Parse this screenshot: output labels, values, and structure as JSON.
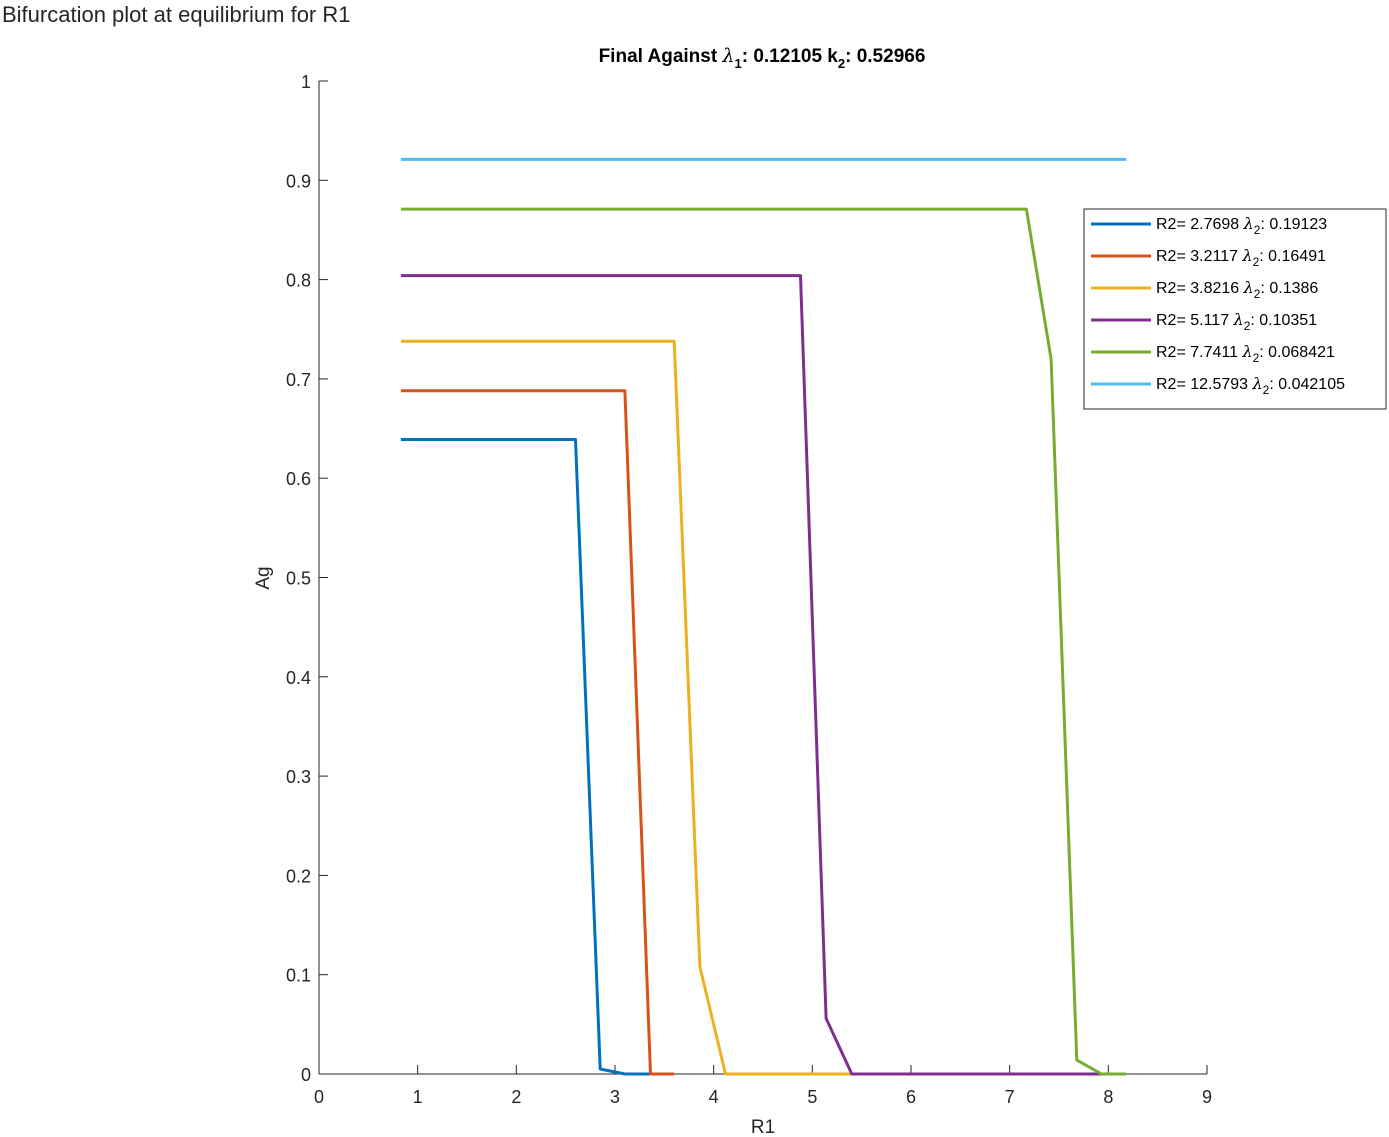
{
  "window": {
    "title": "Bifurcation plot at equilibrium for R1"
  },
  "chart_data": {
    "type": "line",
    "title": {
      "prefix": "Final Against ",
      "symbol1": "λ",
      "sub1": "1",
      "value1": ": 0.12105 k",
      "sub2": "2",
      "value2": ": 0.52966"
    },
    "xlabel": "R1",
    "ylabel": "Ag",
    "xlim": [
      0,
      9
    ],
    "ylim": [
      0,
      1
    ],
    "xticks": [
      0,
      1,
      2,
      3,
      4,
      5,
      6,
      7,
      8,
      9
    ],
    "yticks": [
      0,
      0.1,
      0.2,
      0.3,
      0.4,
      0.5,
      0.6,
      0.7,
      0.8,
      0.9,
      1
    ],
    "xtick_labels": [
      "0",
      "1",
      "2",
      "3",
      "4",
      "5",
      "6",
      "7",
      "8",
      "9"
    ],
    "ytick_labels": [
      "0",
      "0.1",
      "0.2",
      "0.3",
      "0.4",
      "0.5",
      "0.6",
      "0.7",
      "0.8",
      "0.9",
      "1"
    ],
    "grid": false,
    "legend_position": "top-right",
    "series": [
      {
        "name": "R2= 2.7698 λ2: 0.19123",
        "legend": {
          "prefix": "R2= 2.7698 ",
          "symbol": "λ",
          "sub": "2",
          "suffix": ": 0.19123"
        },
        "color": "#0072BD",
        "x": [
          0.83,
          2.6,
          2.85,
          3.1,
          3.35
        ],
        "y": [
          0.639,
          0.639,
          0.005,
          0.0,
          0.0
        ]
      },
      {
        "name": "R2= 3.2117 λ2: 0.16491",
        "legend": {
          "prefix": "R2= 3.2117 ",
          "symbol": "λ",
          "sub": "2",
          "suffix": ": 0.16491"
        },
        "color": "#D95319",
        "x": [
          0.83,
          3.1,
          3.36,
          3.6
        ],
        "y": [
          0.688,
          0.688,
          0.0,
          0.0
        ]
      },
      {
        "name": "R2= 3.8216 λ2: 0.1386",
        "legend": {
          "prefix": "R2= 3.8216 ",
          "symbol": "λ",
          "sub": "2",
          "suffix": ": 0.1386"
        },
        "color": "#EDB120",
        "x": [
          0.83,
          3.6,
          3.86,
          4.12,
          5.4
        ],
        "y": [
          0.738,
          0.738,
          0.108,
          0.0,
          0.0
        ]
      },
      {
        "name": "R2= 5.117 λ2: 0.10351",
        "legend": {
          "prefix": "R2= 5.117 ",
          "symbol": "λ",
          "sub": "2",
          "suffix": ": 0.10351"
        },
        "color": "#7E2F8E",
        "x": [
          0.83,
          4.88,
          5.14,
          5.4,
          7.95
        ],
        "y": [
          0.804,
          0.804,
          0.056,
          0.0,
          0.0
        ]
      },
      {
        "name": "R2= 7.7411 λ2: 0.068421",
        "legend": {
          "prefix": "R2= 7.7411 ",
          "symbol": "λ",
          "sub": "2",
          "suffix": ": 0.068421"
        },
        "color": "#77AC30",
        "x": [
          0.83,
          7.17,
          7.42,
          7.68,
          7.93,
          8.18
        ],
        "y": [
          0.871,
          0.871,
          0.72,
          0.014,
          0.0,
          0.0
        ]
      },
      {
        "name": "R2= 12.5793 λ2: 0.042105",
        "legend": {
          "prefix": "R2= 12.5793 ",
          "symbol": "λ",
          "sub": "2",
          "suffix": ": 0.042105"
        },
        "color": "#4DBEEE",
        "x": [
          0.83,
          8.18
        ],
        "y": [
          0.921,
          0.921
        ]
      }
    ]
  }
}
